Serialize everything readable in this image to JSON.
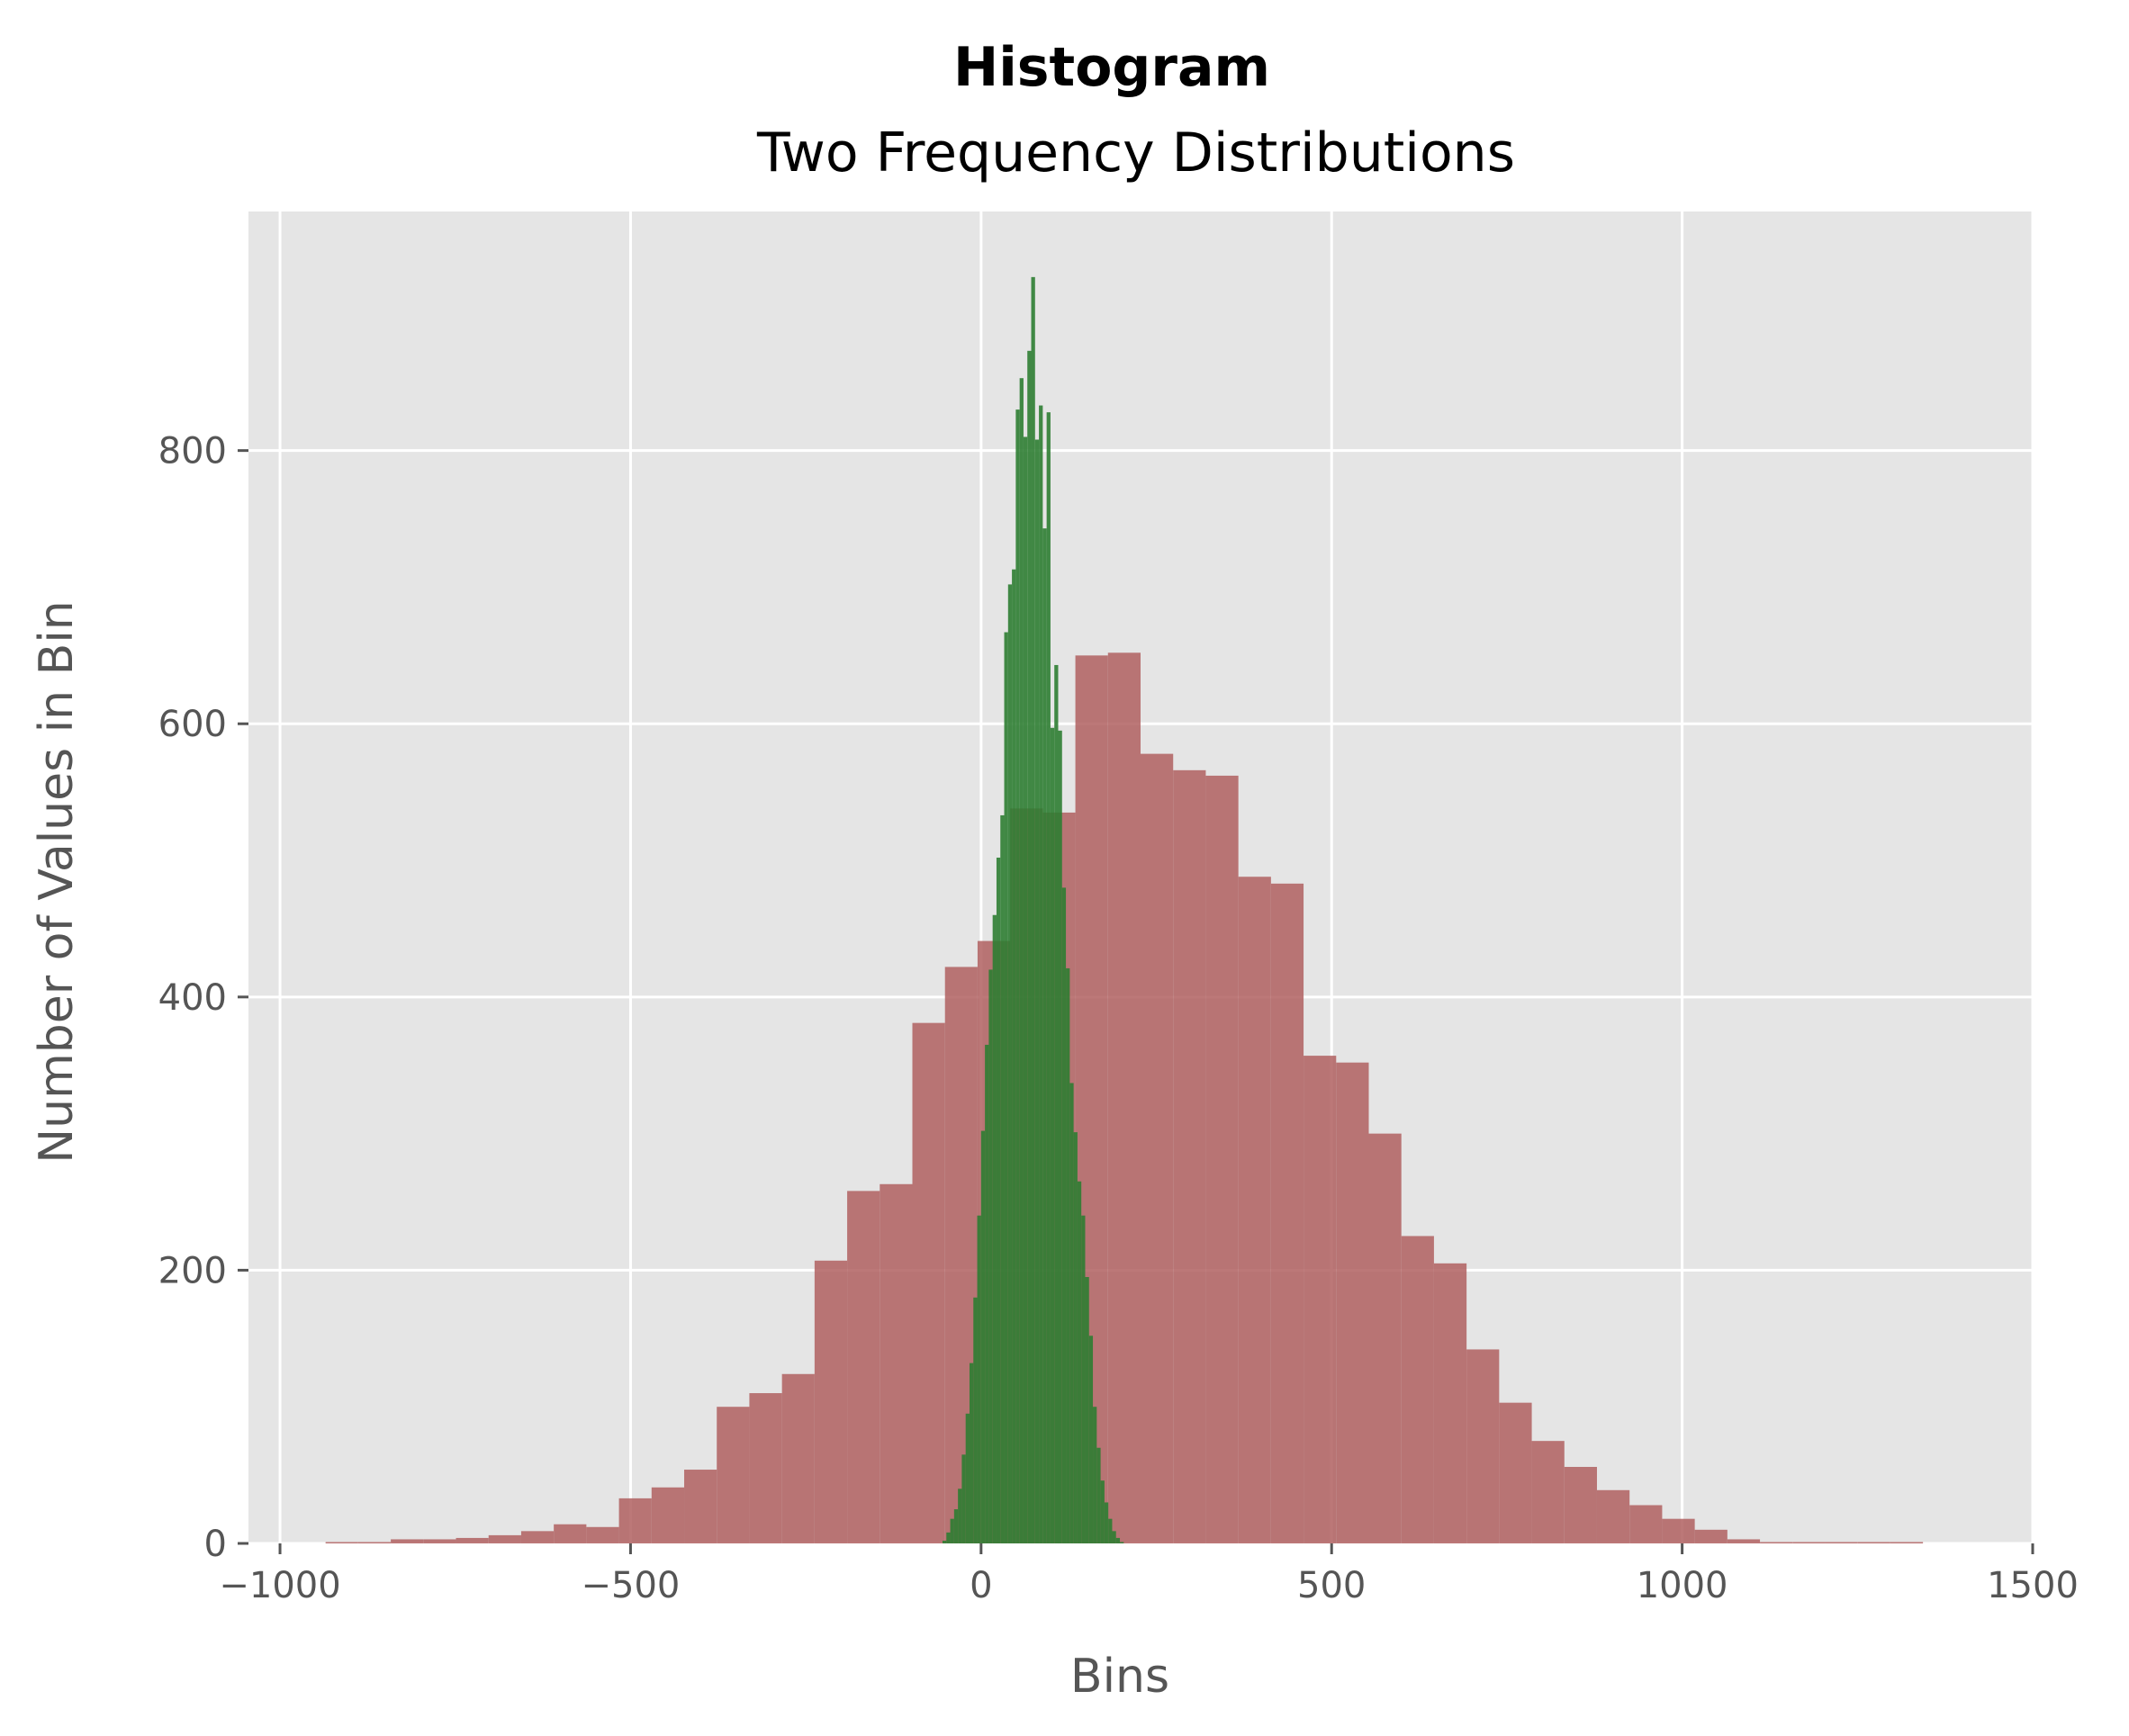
{
  "chart_data": {
    "type": "bar",
    "title": "Histogram",
    "subtitle": "Two Frequency Distributions",
    "xlabel": "Bins",
    "ylabel": "Number of Values in Bin",
    "xlim": [
      -1045,
      1500
    ],
    "ylim": [
      0,
      975
    ],
    "xticks": [
      {
        "value": -1000,
        "label": "−1000"
      },
      {
        "value": -500,
        "label": "−500"
      },
      {
        "value": 0,
        "label": "0"
      },
      {
        "value": 500,
        "label": "500"
      },
      {
        "value": 1000,
        "label": "1000"
      },
      {
        "value": 1500,
        "label": "1500"
      }
    ],
    "yticks": [
      {
        "value": 0,
        "label": "0"
      },
      {
        "value": 200,
        "label": "200"
      },
      {
        "value": 400,
        "label": "400"
      },
      {
        "value": 600,
        "label": "600"
      },
      {
        "value": 800,
        "label": "800"
      }
    ],
    "grid": true,
    "colors": {
      "background": "#e5e5e5",
      "grid": "#ffffff",
      "wide_series": "#b06060",
      "narrow_series": "#2e7d32"
    },
    "series": [
      {
        "bin_start": -935,
        "bin_width": 46.5,
        "values": [
          1,
          1,
          3,
          3,
          4,
          6,
          9,
          14,
          12,
          33,
          41,
          54,
          100,
          110,
          124,
          207,
          258,
          263,
          381,
          422,
          441,
          538,
          535,
          650,
          652,
          578,
          566,
          562,
          488,
          483,
          357,
          352,
          300,
          225,
          205,
          142,
          103,
          75,
          56,
          39,
          28,
          18,
          10,
          3,
          1,
          1,
          1,
          1,
          1,
          0
        ]
      },
      {
        "bin_start": -55,
        "bin_width": 5.5,
        "values": [
          2,
          8,
          18,
          25,
          40,
          65,
          95,
          132,
          180,
          240,
          302,
          365,
          420,
          460,
          502,
          533,
          667,
          702,
          713,
          830,
          853,
          810,
          873,
          927,
          808,
          833,
          743,
          828,
          597,
          643,
          595,
          480,
          421,
          337,
          301,
          265,
          240,
          195,
          152,
          100,
          70,
          46,
          30,
          18,
          9,
          4,
          1
        ]
      }
    ]
  }
}
